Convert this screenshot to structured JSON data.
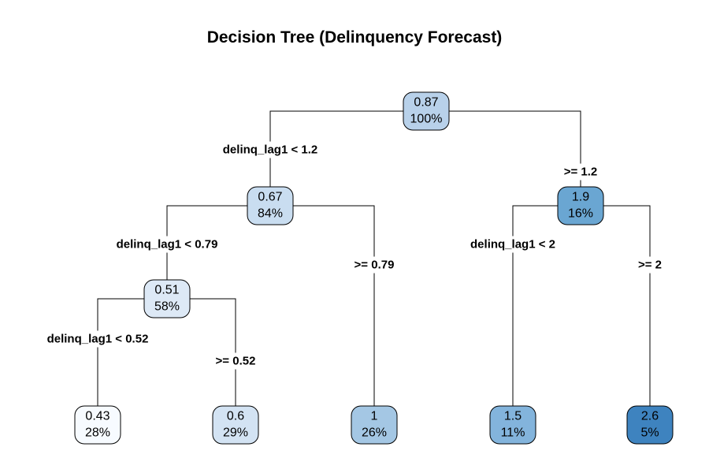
{
  "title": "Decision Tree (Delinquency Forecast)",
  "nodes": [
    {
      "id": "n1",
      "value": "0.87",
      "pct": "100%",
      "color": "#b8d1ea"
    },
    {
      "id": "n2",
      "value": "0.67",
      "pct": "84%",
      "color": "#c9ddf0"
    },
    {
      "id": "n3",
      "value": "1.9",
      "pct": "16%",
      "color": "#6aa6d2"
    },
    {
      "id": "n4",
      "value": "0.51",
      "pct": "58%",
      "color": "#dde9f6"
    },
    {
      "id": "n5",
      "value": "1",
      "pct": "26%",
      "color": "#a4c7e4"
    },
    {
      "id": "n6",
      "value": "1.5",
      "pct": "11%",
      "color": "#83b4dc"
    },
    {
      "id": "n7",
      "value": "2.6",
      "pct": "5%",
      "color": "#3e83bf"
    },
    {
      "id": "n8",
      "value": "0.43",
      "pct": "28%",
      "color": "#f7fbff"
    },
    {
      "id": "n9",
      "value": "0.6",
      "pct": "29%",
      "color": "#d3e3f3"
    }
  ],
  "splits": [
    {
      "id": "s1",
      "text": "delinq_lag1 < 1.2"
    },
    {
      "id": "s2",
      "text": ">= 1.2"
    },
    {
      "id": "s3",
      "text": "delinq_lag1 < 0.79"
    },
    {
      "id": "s4",
      "text": ">= 0.79"
    },
    {
      "id": "s5",
      "text": "delinq_lag1 < 2"
    },
    {
      "id": "s6",
      "text": ">= 2"
    },
    {
      "id": "s7",
      "text": "delinq_lag1 < 0.52"
    },
    {
      "id": "s8",
      "text": ">= 0.52"
    }
  ]
}
